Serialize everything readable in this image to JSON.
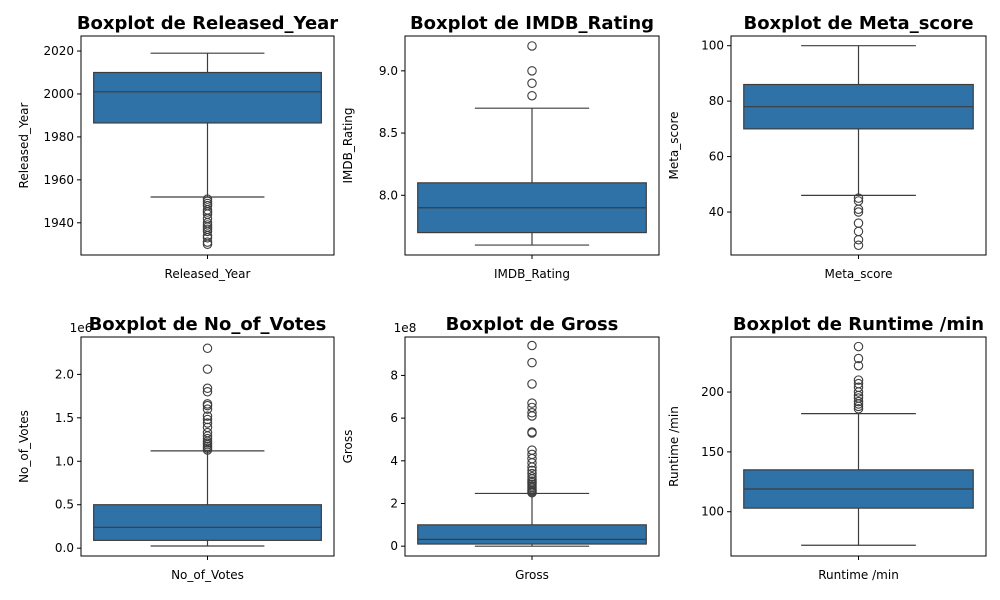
{
  "chart_data": [
    {
      "type": "boxplot",
      "title": "Boxplot de Released_Year",
      "xlabel": "Released_Year",
      "ylabel": "Released_Year",
      "ylim": [
        1925,
        2027
      ],
      "yticks": [
        1940,
        1960,
        1980,
        2000,
        2020
      ],
      "tick_decimals": 0,
      "offset_label": "",
      "color": "#2f72a8",
      "box": {
        "whislo": 1952,
        "q1": 1986.5,
        "med": 2001,
        "q3": 2010,
        "whishi": 2019
      },
      "fliers": [
        1951,
        1950,
        1949,
        1948,
        1946,
        1945,
        1944,
        1942,
        1940,
        1939,
        1938,
        1937,
        1936,
        1934,
        1933,
        1931,
        1930
      ]
    },
    {
      "type": "boxplot",
      "title": "Boxplot de IMDB_Rating",
      "xlabel": "IMDB_Rating",
      "ylabel": "IMDB_Rating",
      "ylim": [
        7.52,
        9.28
      ],
      "yticks": [
        8.0,
        8.5,
        9.0
      ],
      "tick_decimals": 1,
      "offset_label": "",
      "color": "#2f72a8",
      "box": {
        "whislo": 7.6,
        "q1": 7.7,
        "med": 7.9,
        "q3": 8.1,
        "whishi": 8.7
      },
      "fliers": [
        8.8,
        8.9,
        9.0,
        9.2
      ]
    },
    {
      "type": "boxplot",
      "title": "Boxplot de Meta_score",
      "xlabel": "Meta_score",
      "ylabel": "Meta_score",
      "ylim": [
        24.5,
        103.5
      ],
      "yticks": [
        40,
        60,
        80,
        100
      ],
      "tick_decimals": 0,
      "offset_label": "",
      "color": "#2f72a8",
      "box": {
        "whislo": 46,
        "q1": 70,
        "med": 78,
        "q3": 86,
        "whishi": 100
      },
      "fliers": [
        45,
        44,
        41,
        40,
        36,
        33,
        30,
        28
      ]
    },
    {
      "type": "boxplot",
      "title": "Boxplot de No_of_Votes",
      "xlabel": "No_of_Votes",
      "ylabel": "No_of_Votes",
      "ylim": [
        -0.09,
        2.43
      ],
      "yticks": [
        0.0,
        0.5,
        1.0,
        1.5,
        2.0,
        2.5
      ],
      "tick_decimals": 1,
      "offset_label": "1e6",
      "color": "#2f72a8",
      "box": {
        "whislo": 0.025,
        "q1": 0.09,
        "med": 0.24,
        "q3": 0.5,
        "whishi": 1.12
      },
      "fliers": [
        1.13,
        1.15,
        1.17,
        1.19,
        1.21,
        1.23,
        1.26,
        1.29,
        1.33,
        1.39,
        1.44,
        1.48,
        1.52,
        1.6,
        1.64,
        1.66,
        1.8,
        1.84,
        2.06,
        2.3
      ]
    },
    {
      "type": "boxplot",
      "title": "Boxplot de Gross",
      "xlabel": "Gross",
      "ylabel": "Gross",
      "ylim": [
        -0.46,
        9.8
      ],
      "yticks": [
        0,
        2,
        4,
        6,
        8
      ],
      "tick_decimals": 0,
      "offset_label": "1e8",
      "color": "#2f72a8",
      "box": {
        "whislo": 0.0,
        "q1": 0.1,
        "med": 0.32,
        "q3": 1.0,
        "whishi": 2.47
      },
      "fliers": [
        2.5,
        2.55,
        2.6,
        2.68,
        2.75,
        2.82,
        2.9,
        2.98,
        3.05,
        3.15,
        3.25,
        3.4,
        3.55,
        3.7,
        3.9,
        4.1,
        4.3,
        4.5,
        5.3,
        5.35,
        6.1,
        6.25,
        6.5,
        6.7,
        7.6,
        8.6,
        9.4
      ]
    },
    {
      "type": "boxplot",
      "title": "Boxplot de Runtime /min",
      "xlabel": "Runtime /min",
      "ylabel": "Runtime /min",
      "ylim": [
        63,
        246
      ],
      "yticks": [
        100,
        150,
        200
      ],
      "tick_decimals": 0,
      "offset_label": "",
      "color": "#2f72a8",
      "box": {
        "whislo": 72,
        "q1": 103,
        "med": 119,
        "q3": 135,
        "whishi": 182
      },
      "fliers": [
        186,
        188,
        190,
        192,
        195,
        197,
        200,
        204,
        207,
        210,
        222,
        228,
        238
      ]
    }
  ]
}
